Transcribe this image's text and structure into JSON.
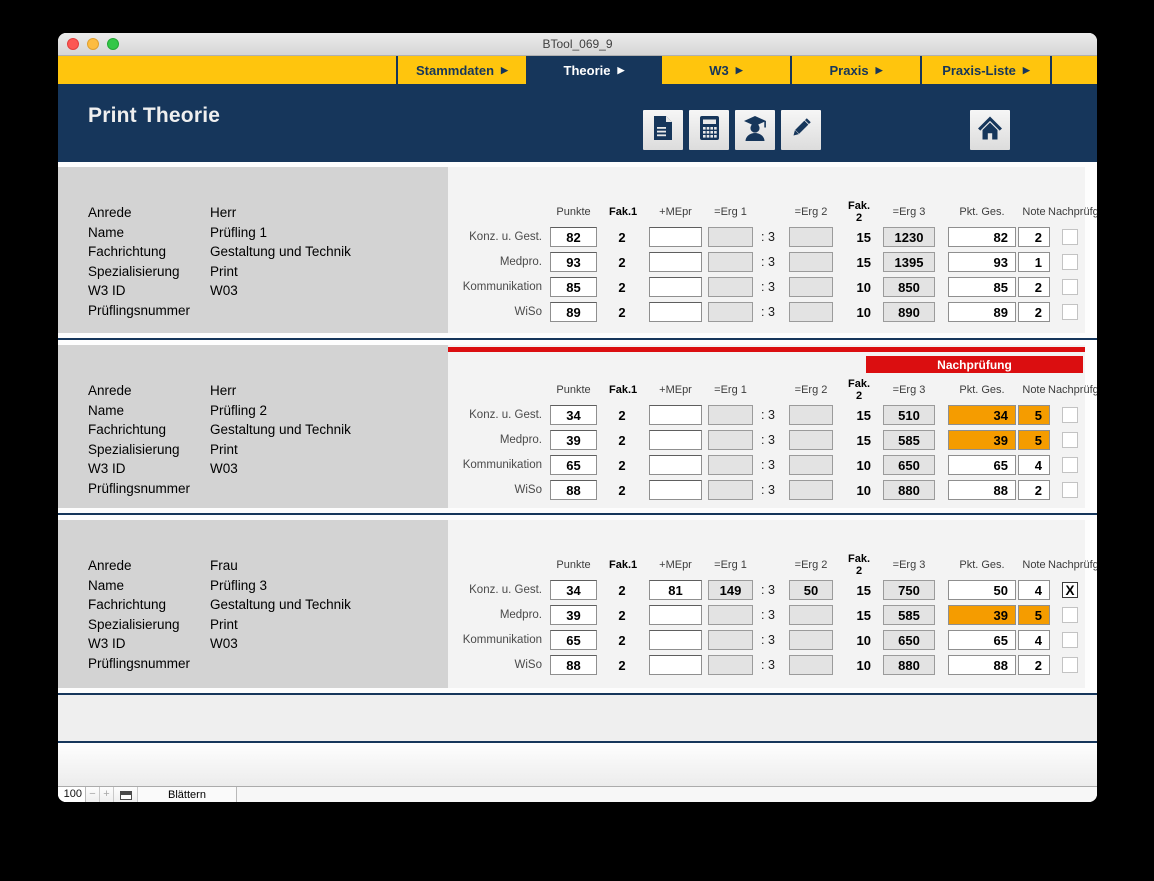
{
  "window_title": "BTool_069_9",
  "tab_arrow": "▶",
  "tabs": [
    {
      "label": "Stammdaten",
      "active": false
    },
    {
      "label": "Theorie",
      "active": true
    },
    {
      "label": "W3",
      "active": false
    },
    {
      "label": "Praxis",
      "active": false
    },
    {
      "label": "Praxis-Liste",
      "active": false
    }
  ],
  "header": {
    "title": "Print Theorie"
  },
  "nachpruefung_banner": "Nachprüfung",
  "check_glyph": "X",
  "colon_divider": ": 3",
  "columns": [
    {
      "key": "punkte",
      "label": "Punkte"
    },
    {
      "key": "fak1",
      "label": "Fak.1"
    },
    {
      "key": "mepr",
      "label": "+MEpr"
    },
    {
      "key": "erg1",
      "label": "=Erg 1"
    },
    {
      "key": "colon",
      "label": ""
    },
    {
      "key": "erg2",
      "label": "=Erg 2"
    },
    {
      "key": "fak2",
      "label": "Fak. 2"
    },
    {
      "key": "erg3",
      "label": "=Erg 3"
    },
    {
      "key": "pktges",
      "label": "Pkt. Ges."
    },
    {
      "key": "note",
      "label": "Note"
    },
    {
      "key": "check",
      "label": "Nachprüfg"
    }
  ],
  "info_labels": [
    "Anrede",
    "Name",
    "Fachrichtung",
    "Spezialisierung",
    "W3 ID",
    "Prüflingsnummer"
  ],
  "records": [
    {
      "info_values": [
        "Herr",
        "Prüfling 1",
        "Gestaltung und Technik",
        "Print",
        "W03",
        ""
      ],
      "nachpruefung": false,
      "rows": [
        {
          "label": "Konz. u. Gest.",
          "punkte": "82",
          "fak1": "2",
          "mepr": "",
          "erg1": "",
          "erg2": "",
          "fak2": "15",
          "erg3": "1230",
          "pktges": "82",
          "note": "2",
          "warn": false,
          "checked": false
        },
        {
          "label": "Medpro.",
          "punkte": "93",
          "fak1": "2",
          "mepr": "",
          "erg1": "",
          "erg2": "",
          "fak2": "15",
          "erg3": "1395",
          "pktges": "93",
          "note": "1",
          "warn": false,
          "checked": false
        },
        {
          "label": "Kommunikation",
          "punkte": "85",
          "fak1": "2",
          "mepr": "",
          "erg1": "",
          "erg2": "",
          "fak2": "10",
          "erg3": "850",
          "pktges": "85",
          "note": "2",
          "warn": false,
          "checked": false
        },
        {
          "label": "WiSo",
          "punkte": "89",
          "fak1": "2",
          "mepr": "",
          "erg1": "",
          "erg2": "",
          "fak2": "10",
          "erg3": "890",
          "pktges": "89",
          "note": "2",
          "warn": false,
          "checked": false
        }
      ]
    },
    {
      "info_values": [
        "Herr",
        "Prüfling 2",
        "Gestaltung und Technik",
        "Print",
        "W03",
        ""
      ],
      "nachpruefung": true,
      "rows": [
        {
          "label": "Konz. u. Gest.",
          "punkte": "34",
          "fak1": "2",
          "mepr": "",
          "erg1": "",
          "erg2": "",
          "fak2": "15",
          "erg3": "510",
          "pktges": "34",
          "note": "5",
          "warn": true,
          "checked": false
        },
        {
          "label": "Medpro.",
          "punkte": "39",
          "fak1": "2",
          "mepr": "",
          "erg1": "",
          "erg2": "",
          "fak2": "15",
          "erg3": "585",
          "pktges": "39",
          "note": "5",
          "warn": true,
          "checked": false
        },
        {
          "label": "Kommunikation",
          "punkte": "65",
          "fak1": "2",
          "mepr": "",
          "erg1": "",
          "erg2": "",
          "fak2": "10",
          "erg3": "650",
          "pktges": "65",
          "note": "4",
          "warn": false,
          "checked": false
        },
        {
          "label": "WiSo",
          "punkte": "88",
          "fak1": "2",
          "mepr": "",
          "erg1": "",
          "erg2": "",
          "fak2": "10",
          "erg3": "880",
          "pktges": "88",
          "note": "2",
          "warn": false,
          "checked": false
        }
      ]
    },
    {
      "info_values": [
        "Frau",
        "Prüfling 3",
        "Gestaltung und Technik",
        "Print",
        "W03",
        ""
      ],
      "nachpruefung": false,
      "rows": [
        {
          "label": "Konz. u. Gest.",
          "punkte": "34",
          "fak1": "2",
          "mepr": "81",
          "erg1": "149",
          "erg2": "50",
          "fak2": "15",
          "erg3": "750",
          "pktges": "50",
          "note": "4",
          "warn": false,
          "checked": true
        },
        {
          "label": "Medpro.",
          "punkte": "39",
          "fak1": "2",
          "mepr": "",
          "erg1": "",
          "erg2": "",
          "fak2": "15",
          "erg3": "585",
          "pktges": "39",
          "note": "5",
          "warn": true,
          "checked": false
        },
        {
          "label": "Kommunikation",
          "punkte": "65",
          "fak1": "2",
          "mepr": "",
          "erg1": "",
          "erg2": "",
          "fak2": "10",
          "erg3": "650",
          "pktges": "65",
          "note": "4",
          "warn": false,
          "checked": false
        },
        {
          "label": "WiSo",
          "punkte": "88",
          "fak1": "2",
          "mepr": "",
          "erg1": "",
          "erg2": "",
          "fak2": "10",
          "erg3": "880",
          "pktges": "88",
          "note": "2",
          "warn": false,
          "checked": false
        }
      ]
    }
  ],
  "toolbar_icons": [
    "document-icon",
    "calculator-icon",
    "graduate-icon",
    "pencil-icon"
  ],
  "home_icon": "home-icon",
  "footer": {
    "zoom_level": "100",
    "minus": "−",
    "plus": "+",
    "mode": "Blättern"
  },
  "colors": {
    "navy": "#16365B",
    "yellow": "#FFC50D",
    "red": "#DB0E10",
    "orange": "#F59C00",
    "panel_gray": "#D3D3D3"
  }
}
